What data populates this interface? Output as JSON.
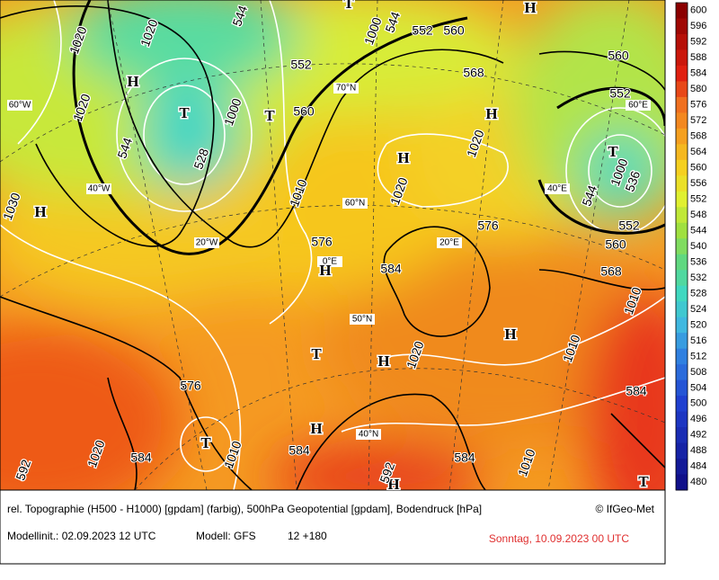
{
  "colorbar": {
    "ticks": [
      600,
      596,
      592,
      588,
      584,
      580,
      576,
      572,
      568,
      564,
      560,
      556,
      552,
      548,
      544,
      540,
      536,
      532,
      528,
      524,
      520,
      516,
      512,
      508,
      504,
      500,
      496,
      492,
      488,
      484,
      480
    ]
  },
  "map": {
    "graticule_labels": [
      "70°N",
      "60°W",
      "60°E",
      "40°W",
      "40°E",
      "60°N",
      "20°W",
      "20°E",
      "0°E",
      "50°N",
      "40°N"
    ],
    "pressure_centers": [
      "H",
      "H",
      "H",
      "H",
      "H",
      "H",
      "H",
      "H",
      "H",
      "H",
      "T",
      "T",
      "T",
      "T",
      "T",
      "T",
      "T"
    ],
    "geopotential_labels": [
      "552",
      "552",
      "552",
      "552",
      "560",
      "560",
      "560",
      "560",
      "568",
      "568",
      "576",
      "576",
      "576",
      "584",
      "584",
      "584",
      "584",
      "584"
    ],
    "pressure_labels": [
      "1020",
      "1020",
      "1020",
      "1020",
      "1020",
      "1020",
      "1020",
      "1030",
      "1000",
      "1000",
      "1000",
      "1010",
      "1010",
      "1010",
      "1010",
      "1010",
      "544",
      "544",
      "544",
      "544",
      "528",
      "536",
      "592",
      "592"
    ]
  },
  "footer": {
    "description": "rel. Topographie (H500 - H1000) [gpdam] (farbig), 500hPa Geopotential [gpdam], Bodendruck [hPa]",
    "copyright": "© IfGeo-Met",
    "init": "Modellinit.: 02.09.2023 12 UTC",
    "model": "Modell: GFS",
    "run": "12 +180",
    "valid": "Sonntag, 10.09.2023 00 UTC"
  }
}
